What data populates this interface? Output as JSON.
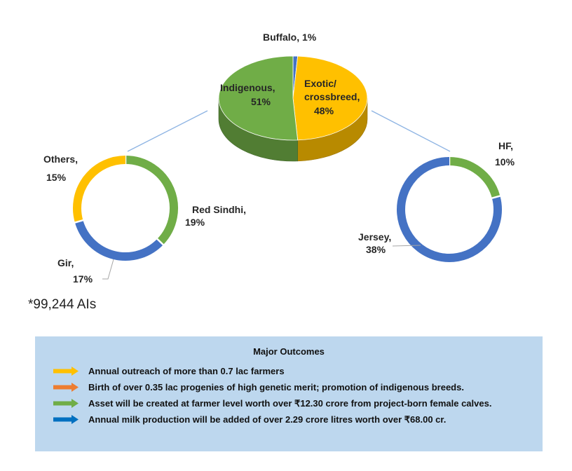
{
  "chart_data": [
    {
      "type": "pie",
      "style": "3d",
      "slices": [
        {
          "label": "Buffalo",
          "value": 1,
          "display": "Buffalo, 1%",
          "color": "#4472c4"
        },
        {
          "label": "Exotic/crossbreed",
          "value": 48,
          "display_lines": [
            "Exotic/",
            "crossbreed,",
            "48%"
          ],
          "color": "#ffc000"
        },
        {
          "label": "Indigenous",
          "value": 51,
          "display_lines": [
            "Indigenous,",
            "51%"
          ],
          "color": "#70ad47"
        }
      ]
    },
    {
      "type": "pie",
      "style": "doughnut",
      "slices": [
        {
          "label": "Red Sindhi",
          "value": 19,
          "display_lines": [
            "Red Sindhi,",
            "19%"
          ],
          "color": "#70ad47"
        },
        {
          "label": "Gir",
          "value": 17,
          "display_lines": [
            "Gir,",
            "17%"
          ],
          "color": "#4472c4"
        },
        {
          "label": "Others",
          "value": 15,
          "display_lines": [
            "Others,",
            "15%"
          ],
          "color": "#ffc000"
        }
      ]
    },
    {
      "type": "pie",
      "style": "doughnut",
      "slices": [
        {
          "label": "HF",
          "value": 10,
          "display_lines": [
            "HF,",
            "10%"
          ],
          "color": "#70ad47"
        },
        {
          "label": "Jersey",
          "value": 38,
          "display_lines": [
            "Jersey,",
            "38%"
          ],
          "color": "#4472c4"
        }
      ]
    }
  ],
  "footnote": "*99,244 AIs",
  "outcomes": {
    "title": "Major Outcomes",
    "items": [
      {
        "text": "Annual outreach of more than 0.7 lac farmers",
        "arrow_color": "#ffc000"
      },
      {
        "text": "Birth of over 0.35 lac progenies of high genetic merit; promotion of indigenous breeds.",
        "arrow_color": "#ed7d31"
      },
      {
        "text": "Asset will be created at farmer level worth over ₹12.30 crore from project-born female calves.",
        "arrow_color": "#70ad47"
      },
      {
        "text": "Annual milk production will be added of over 2.29 crore litres worth over ₹68.00 cr.",
        "arrow_color": "#0070c0"
      }
    ]
  }
}
